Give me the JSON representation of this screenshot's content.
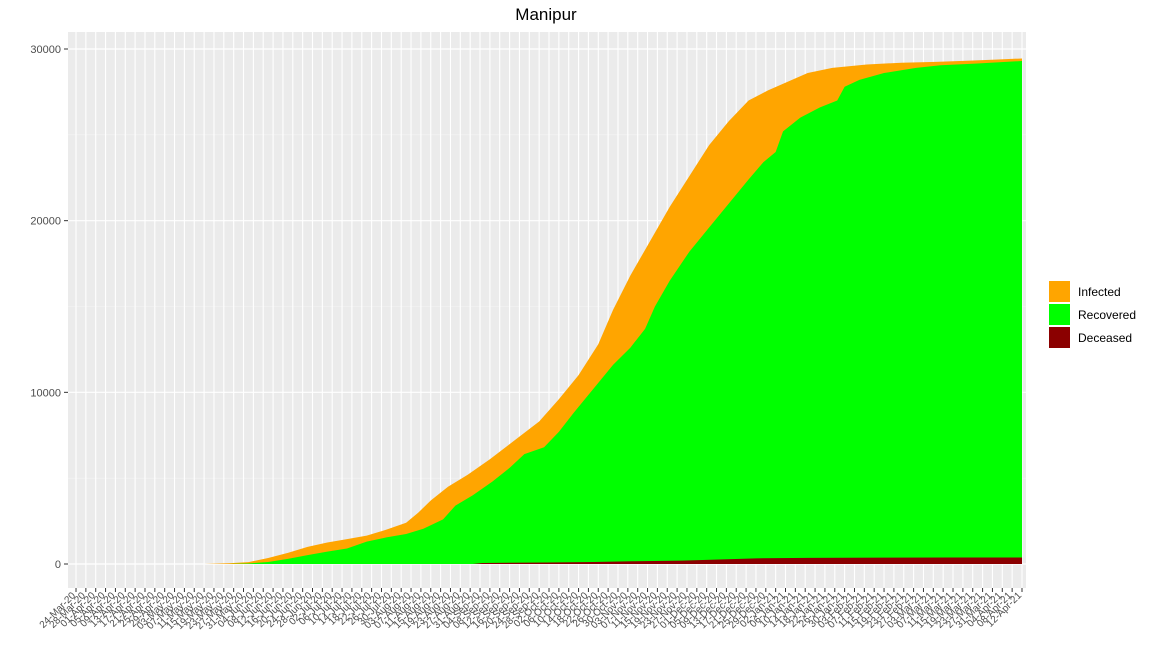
{
  "chart_data": {
    "type": "area",
    "title": "Manipur",
    "xlabel": "",
    "ylabel": "",
    "ylim": [
      0,
      30000
    ],
    "yticks": [
      0,
      10000,
      20000,
      30000
    ],
    "grid": true,
    "legend_position": "right",
    "stacking": "overlay",
    "x_range": [
      "2020-03-24",
      "2021-04-12"
    ],
    "x_tick_labels": [
      "24-Mar-20",
      "28-Mar-20",
      "01-Apr-20",
      "05-Apr-20",
      "09-Apr-20",
      "13-Apr-20",
      "17-Apr-20",
      "21-Apr-20",
      "25-Apr-20",
      "29-Apr-20",
      "03-May-20",
      "07-May-20",
      "11-May-20",
      "15-May-20",
      "19-May-20",
      "23-May-20",
      "27-May-20",
      "31-May-20",
      "04-Jun-20",
      "08-Jun-20",
      "12-Jun-20",
      "16-Jun-20",
      "20-Jun-20",
      "24-Jun-20",
      "28-Jun-20",
      "02-Jul-20",
      "06-Jul-20",
      "10-Jul-20",
      "14-Jul-20",
      "18-Jul-20",
      "22-Jul-20",
      "26-Jul-20",
      "30-Jul-20",
      "03-Aug-20",
      "07-Aug-20",
      "11-Aug-20",
      "15-Aug-20",
      "19-Aug-20",
      "23-Aug-20",
      "27-Aug-20",
      "31-Aug-20",
      "04-Sep-20",
      "08-Sep-20",
      "12-Sep-20",
      "16-Sep-20",
      "20-Sep-20",
      "24-Sep-20",
      "28-Sep-20",
      "02-Oct-20",
      "06-Oct-20",
      "10-Oct-20",
      "14-Oct-20",
      "18-Oct-20",
      "22-Oct-20",
      "26-Oct-20",
      "30-Oct-20",
      "03-Nov-20",
      "07-Nov-20",
      "11-Nov-20",
      "15-Nov-20",
      "19-Nov-20",
      "23-Nov-20",
      "27-Nov-20",
      "01-Dec-20",
      "05-Dec-20",
      "09-Dec-20",
      "13-Dec-20",
      "17-Dec-20",
      "21-Dec-20",
      "25-Dec-20",
      "29-Dec-20",
      "02-Jan-21",
      "06-Jan-21",
      "10-Jan-21",
      "14-Jan-21",
      "18-Jan-21",
      "22-Jan-21",
      "26-Jan-21",
      "30-Jan-21",
      "03-Feb-21",
      "07-Feb-21",
      "11-Feb-21",
      "15-Feb-21",
      "19-Feb-21",
      "23-Feb-21",
      "27-Feb-21",
      "03-Mar-21",
      "07-Mar-21",
      "11-Mar-21",
      "15-Mar-21",
      "19-Mar-21",
      "23-Mar-21",
      "27-Mar-21",
      "31-Mar-21",
      "04-Apr-21",
      "08-Apr-21",
      "12-Apr-21"
    ],
    "series": [
      {
        "name": "Infected",
        "color": "#FFA500",
        "points": [
          [
            "2020-03-24",
            0
          ],
          [
            "2020-05-15",
            0
          ],
          [
            "2020-05-25",
            40
          ],
          [
            "2020-06-02",
            110
          ],
          [
            "2020-06-10",
            350
          ],
          [
            "2020-06-18",
            650
          ],
          [
            "2020-06-26",
            1000
          ],
          [
            "2020-07-04",
            1250
          ],
          [
            "2020-07-12",
            1450
          ],
          [
            "2020-07-20",
            1650
          ],
          [
            "2020-07-28",
            2000
          ],
          [
            "2020-08-05",
            2400
          ],
          [
            "2020-08-10",
            3000
          ],
          [
            "2020-08-15",
            3700
          ],
          [
            "2020-08-22",
            4500
          ],
          [
            "2020-08-30",
            5200
          ],
          [
            "2020-09-08",
            6100
          ],
          [
            "2020-09-18",
            7200
          ],
          [
            "2020-09-28",
            8300
          ],
          [
            "2020-10-06",
            9600
          ],
          [
            "2020-10-14",
            11000
          ],
          [
            "2020-10-22",
            12800
          ],
          [
            "2020-10-28",
            14800
          ],
          [
            "2020-11-04",
            16800
          ],
          [
            "2020-11-12",
            18800
          ],
          [
            "2020-11-20",
            20800
          ],
          [
            "2020-11-28",
            22600
          ],
          [
            "2020-12-06",
            24400
          ],
          [
            "2020-12-14",
            25800
          ],
          [
            "2020-12-22",
            27000
          ],
          [
            "2020-12-30",
            27600
          ],
          [
            "2021-01-07",
            28100
          ],
          [
            "2021-01-15",
            28600
          ],
          [
            "2021-01-25",
            28900
          ],
          [
            "2021-02-08",
            29100
          ],
          [
            "2021-02-22",
            29200
          ],
          [
            "2021-03-08",
            29250
          ],
          [
            "2021-03-22",
            29320
          ],
          [
            "2021-04-01",
            29380
          ],
          [
            "2021-04-12",
            29450
          ]
        ]
      },
      {
        "name": "Recovered",
        "color": "#00FF00",
        "points": [
          [
            "2020-03-24",
            0
          ],
          [
            "2020-05-25",
            0
          ],
          [
            "2020-06-02",
            30
          ],
          [
            "2020-06-10",
            120
          ],
          [
            "2020-06-18",
            300
          ],
          [
            "2020-06-26",
            520
          ],
          [
            "2020-07-04",
            720
          ],
          [
            "2020-07-12",
            900
          ],
          [
            "2020-07-20",
            1300
          ],
          [
            "2020-07-28",
            1550
          ],
          [
            "2020-08-05",
            1750
          ],
          [
            "2020-08-12",
            2050
          ],
          [
            "2020-08-20",
            2600
          ],
          [
            "2020-08-25",
            3400
          ],
          [
            "2020-09-01",
            4000
          ],
          [
            "2020-09-09",
            4800
          ],
          [
            "2020-09-16",
            5600
          ],
          [
            "2020-09-22",
            6400
          ],
          [
            "2020-09-30",
            6800
          ],
          [
            "2020-10-06",
            7700
          ],
          [
            "2020-10-12",
            8800
          ],
          [
            "2020-10-20",
            10200
          ],
          [
            "2020-10-28",
            11600
          ],
          [
            "2020-11-04",
            12600
          ],
          [
            "2020-11-10",
            13700
          ],
          [
            "2020-11-14",
            15000
          ],
          [
            "2020-11-20",
            16500
          ],
          [
            "2020-11-28",
            18200
          ],
          [
            "2020-12-06",
            19600
          ],
          [
            "2020-12-14",
            21000
          ],
          [
            "2020-12-22",
            22400
          ],
          [
            "2020-12-28",
            23400
          ],
          [
            "2021-01-02",
            24000
          ],
          [
            "2021-01-05",
            25200
          ],
          [
            "2021-01-12",
            26000
          ],
          [
            "2021-01-20",
            26600
          ],
          [
            "2021-01-27",
            27000
          ],
          [
            "2021-01-30",
            27800
          ],
          [
            "2021-02-05",
            28200
          ],
          [
            "2021-02-15",
            28600
          ],
          [
            "2021-02-28",
            28900
          ],
          [
            "2021-03-10",
            29050
          ],
          [
            "2021-03-24",
            29150
          ],
          [
            "2021-04-12",
            29300
          ]
        ]
      },
      {
        "name": "Deceased",
        "color": "#8B0000",
        "points": [
          [
            "2020-03-24",
            0
          ],
          [
            "2020-09-01",
            0
          ],
          [
            "2020-09-05",
            60
          ],
          [
            "2020-10-01",
            90
          ],
          [
            "2020-10-20",
            120
          ],
          [
            "2020-11-05",
            160
          ],
          [
            "2020-11-25",
            200
          ],
          [
            "2020-12-10",
            260
          ],
          [
            "2020-12-25",
            330
          ],
          [
            "2021-01-15",
            360
          ],
          [
            "2021-02-15",
            370
          ],
          [
            "2021-03-15",
            375
          ],
          [
            "2021-04-12",
            380
          ]
        ]
      }
    ]
  }
}
